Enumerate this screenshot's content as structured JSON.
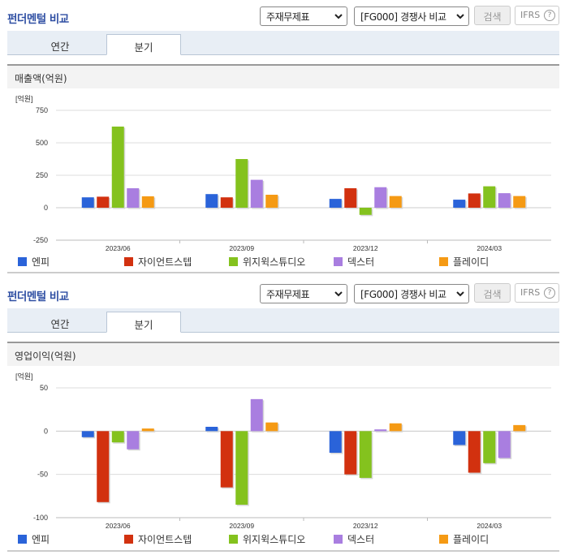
{
  "panels": [
    {
      "title": "펀더멘털 비교",
      "statement_select": "주재무제표",
      "peer_select": "[FG000] 경쟁사 비교",
      "search_label": "검색",
      "ifrs_label": "IFRS",
      "help_glyph": "?",
      "tabs": [
        {
          "label": "연간",
          "active": false
        },
        {
          "label": "분기",
          "active": true
        }
      ],
      "section_label": "매출액(억원)",
      "unit_label": "[억원]",
      "legend": [
        {
          "label": "엔피",
          "color": "#2a63d9"
        },
        {
          "label": "자이언트스텝",
          "color": "#d2310f"
        },
        {
          "label": "위지윅스튜디오",
          "color": "#84c21e"
        },
        {
          "label": "덱스터",
          "color": "#a97ee0"
        },
        {
          "label": "플레이디",
          "color": "#f59a14"
        }
      ]
    },
    {
      "title": "펀더멘털 비교",
      "statement_select": "주재무제표",
      "peer_select": "[FG000] 경쟁사 비교",
      "search_label": "검색",
      "ifrs_label": "IFRS",
      "help_glyph": "?",
      "tabs": [
        {
          "label": "연간",
          "active": false
        },
        {
          "label": "분기",
          "active": true
        }
      ],
      "section_label": "영업이익(억원)",
      "unit_label": "[억원]",
      "legend": [
        {
          "label": "엔피",
          "color": "#2a63d9"
        },
        {
          "label": "자이언트스텝",
          "color": "#d2310f"
        },
        {
          "label": "위지윅스튜디오",
          "color": "#84c21e"
        },
        {
          "label": "덱스터",
          "color": "#a97ee0"
        },
        {
          "label": "플레이디",
          "color": "#f59a14"
        }
      ]
    }
  ],
  "chart_data": [
    {
      "type": "bar",
      "title": "매출액(억원)",
      "ylabel": "[억원]",
      "categories": [
        "2023/06",
        "2023/09",
        "2023/12",
        "2024/03"
      ],
      "ylim": [
        -250,
        750
      ],
      "yticks": [
        750,
        500,
        250,
        0,
        -250
      ],
      "grid": true,
      "legend_position": "bottom",
      "series": [
        {
          "name": "엔피",
          "color": "#2a63d9",
          "values": [
            80,
            105,
            68,
            62
          ]
        },
        {
          "name": "자이언트스텝",
          "color": "#d2310f",
          "values": [
            85,
            80,
            150,
            110
          ]
        },
        {
          "name": "위지윅스튜디오",
          "color": "#84c21e",
          "values": [
            625,
            375,
            -55,
            165
          ]
        },
        {
          "name": "덱스터",
          "color": "#a97ee0",
          "values": [
            150,
            215,
            158,
            112
          ]
        },
        {
          "name": "플레이디",
          "color": "#f59a14",
          "values": [
            88,
            100,
            90,
            90
          ]
        }
      ]
    },
    {
      "type": "bar",
      "title": "영업이익(억원)",
      "ylabel": "[억원]",
      "categories": [
        "2023/06",
        "2023/09",
        "2023/12",
        "2024/03"
      ],
      "ylim": [
        -100,
        50
      ],
      "yticks": [
        50,
        0,
        -50,
        -100
      ],
      "grid": true,
      "legend_position": "bottom",
      "series": [
        {
          "name": "엔피",
          "color": "#2a63d9",
          "values": [
            -7,
            5,
            -25,
            -16
          ]
        },
        {
          "name": "자이언트스텝",
          "color": "#d2310f",
          "values": [
            -82,
            -65,
            -50,
            -48
          ]
        },
        {
          "name": "위지윅스튜디오",
          "color": "#84c21e",
          "values": [
            -13,
            -85,
            -54,
            -37
          ]
        },
        {
          "name": "덱스터",
          "color": "#a97ee0",
          "values": [
            -21,
            37,
            2,
            -31
          ]
        },
        {
          "name": "플레이디",
          "color": "#f59a14",
          "values": [
            3,
            10,
            9,
            7
          ]
        }
      ]
    }
  ]
}
